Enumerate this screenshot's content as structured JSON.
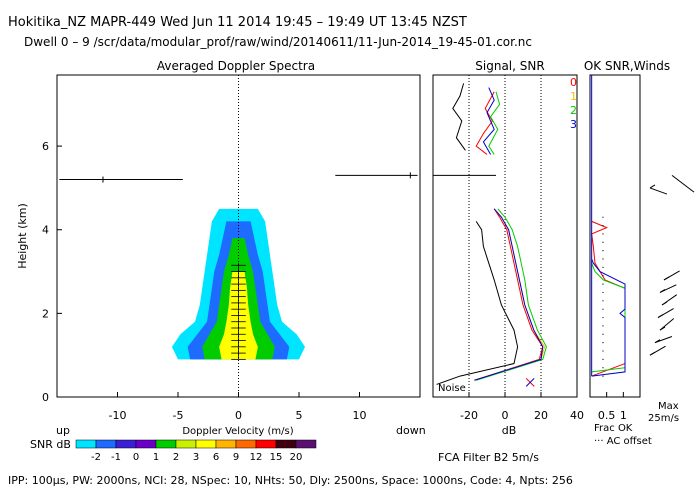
{
  "header": {
    "line1": "Hokitika_NZ   MAPR-449   Wed Jun 11 2014 19:45 – 19:49 UT 13:45 NZST",
    "line2": "Dwell  0 – 9   /scr/data/modular_prof/raw/wind/20140611/11-Jun-2014_19-45-01.cor.nc"
  },
  "panels": {
    "spectra_title": "Averaged Doppler Spectra",
    "signal_title": "Signal, SNR",
    "winds_title": "OK SNR,Winds"
  },
  "axes": {
    "y_label": "Height (km)",
    "x_label": "Doppler Velocity (m/s)",
    "up": "up",
    "down": "down",
    "db": "dB",
    "noise": "Noise",
    "frac_ok": "Frac OK",
    "ac_offset": "··· AC offset",
    "max": "Max",
    "max_value": "25m/s",
    "fca": "FCA Filter B2   5m/s"
  },
  "legend": {
    "title": "SNR dB",
    "labels": [
      "-2",
      "-1",
      "0",
      "1",
      "2",
      "3",
      "6",
      "9",
      "12",
      "15",
      "20"
    ],
    "colors": [
      "#00e5ff",
      "#1e6bff",
      "#3a1fd6",
      "#6a00c8",
      "#00cc00",
      "#c8f000",
      "#ffff00",
      "#ffb400",
      "#ff6a00",
      "#ff0000",
      "#400010",
      "#5a1070"
    ]
  },
  "series_legend": [
    {
      "label": "0",
      "color": "#ff0000"
    },
    {
      "label": "1",
      "color": "#ffc000"
    },
    {
      "label": "2",
      "color": "#00cc00"
    },
    {
      "label": "3",
      "color": "#0000cc"
    }
  ],
  "footer": "IPP: 100µs,  PW: 2000ns,  NCI: 28,  NSpec: 10,  NHts: 50,  Dly: 2500ns,  Space: 1000ns,  Code: 4,  Npts: 256",
  "chart_data": [
    {
      "type": "heatmap",
      "title": "Averaged Doppler Spectra",
      "xlabel": "Doppler Velocity (m/s)",
      "ylabel": "Height (km)",
      "xlim": [
        -15,
        15
      ],
      "ylim": [
        0,
        7.7
      ],
      "xticks": [
        -10,
        -5,
        0,
        5,
        10
      ],
      "yticks": [
        0,
        2,
        4,
        6
      ],
      "profile": [
        {
          "h": 0.9,
          "w": [
            5.0,
            4.0,
            2.8,
            1.4
          ]
        },
        {
          "h": 1.2,
          "w": [
            5.5,
            4.2,
            3.0,
            1.6
          ]
        },
        {
          "h": 1.5,
          "w": [
            4.8,
            3.4,
            2.4,
            1.2
          ]
        },
        {
          "h": 1.8,
          "w": [
            3.6,
            2.6,
            1.8,
            1.0
          ]
        },
        {
          "h": 2.2,
          "w": [
            3.2,
            2.4,
            1.6,
            0.8
          ]
        },
        {
          "h": 2.6,
          "w": [
            3.0,
            2.2,
            1.4,
            0.7
          ]
        },
        {
          "h": 3.0,
          "w": [
            2.8,
            2.0,
            1.2,
            0.5
          ]
        },
        {
          "h": 3.4,
          "w": [
            2.6,
            1.6,
            0.8,
            0.0
          ]
        },
        {
          "h": 3.8,
          "w": [
            2.4,
            1.3,
            0.5,
            0.0
          ]
        },
        {
          "h": 4.2,
          "w": [
            2.2,
            1.0,
            0.0,
            0.0
          ]
        },
        {
          "h": 4.5,
          "w": [
            1.6,
            0.0,
            0.0,
            0.0
          ]
        }
      ],
      "band_colors": [
        "#00e5ff",
        "#1e6bff",
        "#00cc00",
        "#ffff00"
      ],
      "markers": [
        {
          "h": 5.2,
          "x0": -14.8,
          "x1": -4.6,
          "v": -11.2
        },
        {
          "h": 5.3,
          "x0": 8.0,
          "x1": 14.8,
          "v": 14.2
        }
      ]
    },
    {
      "type": "line",
      "title": "Signal, SNR",
      "xlabel": "dB",
      "xlim": [
        -40,
        40
      ],
      "xticks": [
        -20,
        0,
        20,
        40
      ],
      "ylim": [
        0,
        7.7
      ],
      "vlines": [
        -20,
        0,
        20
      ],
      "series": [
        {
          "name": "0",
          "color": "#ff0000",
          "points": [
            [
              -17,
              0.4
            ],
            [
              19,
              0.9
            ],
            [
              21,
              1.2
            ],
            [
              15,
              1.6
            ],
            [
              10,
              2.2
            ],
            [
              7,
              2.8
            ],
            [
              5,
              3.2
            ],
            [
              3,
              3.6
            ],
            [
              1,
              4.0
            ],
            [
              -3,
              4.3
            ],
            [
              -6,
              4.5
            ]
          ]
        },
        {
          "name": "1",
          "color": "#ffc000",
          "points": [
            [
              -17,
              0.4
            ],
            [
              20,
              0.9
            ],
            [
              22,
              1.2
            ],
            [
              16,
              1.6
            ],
            [
              11,
              2.2
            ],
            [
              8,
              2.8
            ],
            [
              6,
              3.2
            ],
            [
              4,
              3.6
            ],
            [
              2,
              4.0
            ],
            [
              -2,
              4.3
            ],
            [
              -6,
              4.5
            ]
          ]
        },
        {
          "name": "2",
          "color": "#00cc00",
          "points": [
            [
              -16,
              0.4
            ],
            [
              21,
              0.9
            ],
            [
              23,
              1.2
            ],
            [
              18,
              1.6
            ],
            [
              13,
              2.2
            ],
            [
              11,
              2.8
            ],
            [
              9,
              3.2
            ],
            [
              7,
              3.6
            ],
            [
              4,
              4.0
            ],
            [
              0,
              4.3
            ],
            [
              -4,
              4.5
            ]
          ]
        },
        {
          "name": "3",
          "color": "#0000cc",
          "points": [
            [
              -17,
              0.4
            ],
            [
              20,
              0.9
            ],
            [
              21,
              1.2
            ],
            [
              16,
              1.6
            ],
            [
              11,
              2.2
            ],
            [
              8,
              2.8
            ],
            [
              6,
              3.2
            ],
            [
              4,
              3.6
            ],
            [
              2,
              4.0
            ],
            [
              -2,
              4.3
            ],
            [
              -6,
              4.5
            ]
          ]
        },
        {
          "name": "noise",
          "color": "#000000",
          "points": [
            [
              -38,
              0.3
            ],
            [
              -25,
              0.5
            ],
            [
              5,
              0.8
            ],
            [
              7,
              1.2
            ],
            [
              5,
              1.6
            ],
            [
              -2,
              2.2
            ],
            [
              -6,
              2.8
            ],
            [
              -9,
              3.2
            ],
            [
              -12,
              3.6
            ],
            [
              -13,
              4.0
            ],
            [
              -16,
              4.2
            ]
          ]
        }
      ],
      "upper_series": [
        {
          "color": "#ff0000",
          "points": [
            [
              -10,
              5.8
            ],
            [
              -16,
              6.0
            ],
            [
              -12,
              6.3
            ],
            [
              -7,
              6.6
            ],
            [
              -11,
              6.9
            ],
            [
              -6,
              7.3
            ]
          ]
        },
        {
          "color": "#00cc00",
          "points": [
            [
              -6,
              5.8
            ],
            [
              -9,
              6.0
            ],
            [
              -4,
              6.4
            ],
            [
              -8,
              6.7
            ],
            [
              -3,
              7.0
            ],
            [
              -5,
              7.3
            ]
          ]
        },
        {
          "color": "#0000cc",
          "points": [
            [
              -8,
              5.8
            ],
            [
              -12,
              6.1
            ],
            [
              -6,
              6.4
            ],
            [
              -10,
              6.8
            ],
            [
              -6,
              7.1
            ],
            [
              -9,
              7.4
            ]
          ]
        },
        {
          "color": "#000000",
          "points": [
            [
              -22,
              5.9
            ],
            [
              -27,
              6.2
            ],
            [
              -24,
              6.6
            ],
            [
              -29,
              6.9
            ],
            [
              -25,
              7.2
            ],
            [
              -23,
              7.5
            ]
          ]
        }
      ],
      "marker": {
        "h": 5.3,
        "x0": -40,
        "x1": -5
      }
    },
    {
      "type": "line",
      "title": "OK SNR,Winds",
      "xlabel": "Frac OK",
      "xlim": [
        0,
        1.5
      ],
      "xticks": [
        0.5,
        1
      ],
      "ylim": [
        0,
        7.7
      ],
      "series": [
        {
          "name": "red",
          "color": "#ff0000",
          "points": [
            [
              0.05,
              0.5
            ],
            [
              1.05,
              0.8
            ],
            [
              1.05,
              2.6
            ],
            [
              0.45,
              2.8
            ],
            [
              0.15,
              3.2
            ],
            [
              0.1,
              3.6
            ],
            [
              0.05,
              3.9
            ],
            [
              0.5,
              4.05
            ],
            [
              0.05,
              4.2
            ]
          ]
        },
        {
          "name": "green",
          "color": "#00cc00",
          "points": [
            [
              0.05,
              0.6
            ],
            [
              1.05,
              0.7
            ],
            [
              1.05,
              2.6
            ],
            [
              0.4,
              2.8
            ],
            [
              0.15,
              3.0
            ],
            [
              0.05,
              3.2
            ]
          ]
        },
        {
          "name": "blue",
          "color": "#0000cc",
          "points": [
            [
              0.05,
              0.5
            ],
            [
              1.05,
              0.6
            ],
            [
              1.05,
              1.9
            ],
            [
              0.9,
              2.0
            ],
            [
              1.05,
              2.1
            ],
            [
              1.05,
              2.7
            ],
            [
              0.3,
              3.0
            ],
            [
              0.1,
              3.2
            ],
            [
              0.05,
              3.3
            ]
          ]
        }
      ],
      "top_line": {
        "color": "#0000cc",
        "x": 0.05,
        "h0": 0.5,
        "h1": 7.7
      }
    }
  ]
}
